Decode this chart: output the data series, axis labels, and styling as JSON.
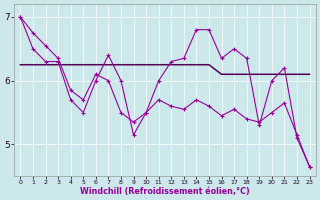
{
  "x": [
    0,
    1,
    2,
    3,
    4,
    5,
    6,
    7,
    8,
    9,
    10,
    11,
    12,
    13,
    14,
    15,
    16,
    17,
    18,
    19,
    20,
    21,
    22,
    23
  ],
  "line_main": [
    7.0,
    6.5,
    6.3,
    6.3,
    5.7,
    5.5,
    6.0,
    6.4,
    6.0,
    5.15,
    5.5,
    6.0,
    6.3,
    6.35,
    6.8,
    6.8,
    6.35,
    6.5,
    6.35,
    5.3,
    6.0,
    6.2,
    5.1,
    4.65
  ],
  "line_flat": [
    6.25,
    6.25,
    6.25,
    6.25,
    6.25,
    6.25,
    6.25,
    6.25,
    6.25,
    6.25,
    6.25,
    6.25,
    6.25,
    6.25,
    6.25,
    6.25,
    6.1,
    6.1,
    6.1,
    6.1,
    6.1,
    6.1,
    6.1,
    6.1
  ],
  "line_diag": [
    7.0,
    6.75,
    6.55,
    6.35,
    5.85,
    5.7,
    6.1,
    6.0,
    5.5,
    5.35,
    5.5,
    5.7,
    5.6,
    5.55,
    5.7,
    5.6,
    5.45,
    5.55,
    5.4,
    5.35,
    5.5,
    5.65,
    5.15,
    4.65
  ],
  "color_main": "#990099",
  "color_dark": "#550055",
  "bg_color": "#cce8ea",
  "ylim": [
    4.5,
    7.2
  ],
  "xlim": [
    -0.5,
    23.5
  ],
  "yticks": [
    5,
    6,
    7
  ],
  "xticks": [
    0,
    1,
    2,
    3,
    4,
    5,
    6,
    7,
    8,
    9,
    10,
    11,
    12,
    13,
    14,
    15,
    16,
    17,
    18,
    19,
    20,
    21,
    22,
    23
  ],
  "xlabel": "Windchill (Refroidissement éolien,°C)"
}
